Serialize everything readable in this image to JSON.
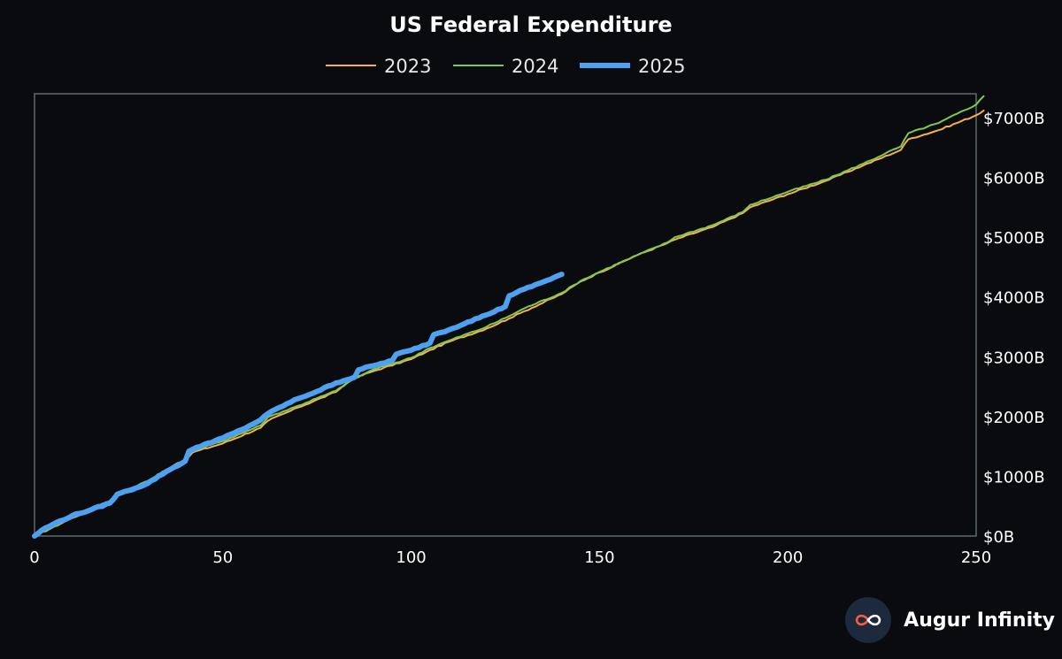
{
  "colors": {
    "background": "#0a0b0e",
    "axis": "#5d6a70",
    "text": "#ffffff",
    "s2023": "#f2b24e",
    "s2024": "#7ec857",
    "s2025": "#4ea0f0",
    "logo_bg": "#1d2a3d"
  },
  "brand": {
    "name": "Augur Infinity",
    "logo_icon": "infinity-icon"
  },
  "chart_data": {
    "type": "line",
    "title": "US Federal Expenditure",
    "xlabel": "",
    "ylabel": "",
    "xlim": [
      0,
      250
    ],
    "ylim": [
      0,
      7400
    ],
    "y_axis_position": "right",
    "grid": false,
    "legend_position": "top-center",
    "x_ticks": [
      0,
      50,
      100,
      150,
      200,
      250
    ],
    "x_tick_labels": [
      "0",
      "50",
      "100",
      "150",
      "200",
      "250"
    ],
    "y_ticks": [
      0,
      1000,
      2000,
      3000,
      4000,
      5000,
      6000,
      7000
    ],
    "y_tick_labels": [
      "$0B",
      "$1000B",
      "$2000B",
      "$3000B",
      "$4000B",
      "$5000B",
      "$6000B",
      "$7000B"
    ],
    "series": [
      {
        "name": "2023",
        "color": "#f2b24e",
        "width": 2,
        "x": [
          0,
          10,
          20,
          22,
          30,
          40,
          42,
          50,
          60,
          62,
          70,
          80,
          84,
          90,
          100,
          104,
          110,
          120,
          126,
          130,
          140,
          145,
          150,
          160,
          168,
          170,
          180,
          188,
          190,
          200,
          210,
          220,
          230,
          232,
          240,
          250,
          252
        ],
        "y": [
          0,
          300,
          580,
          690,
          900,
          1260,
          1400,
          1550,
          1810,
          1930,
          2150,
          2410,
          2620,
          2760,
          2960,
          3080,
          3250,
          3470,
          3640,
          3760,
          4050,
          4260,
          4410,
          4700,
          4900,
          4960,
          5170,
          5400,
          5500,
          5720,
          5940,
          6200,
          6460,
          6640,
          6790,
          7040,
          7120
        ]
      },
      {
        "name": "2024",
        "color": "#7ec857",
        "width": 2,
        "x": [
          0,
          10,
          20,
          22,
          30,
          40,
          42,
          50,
          60,
          62,
          70,
          80,
          84,
          90,
          100,
          104,
          110,
          120,
          126,
          130,
          140,
          145,
          150,
          160,
          168,
          170,
          180,
          188,
          190,
          200,
          210,
          220,
          230,
          232,
          240,
          250,
          252
        ],
        "y": [
          0,
          310,
          590,
          710,
          920,
          1290,
          1420,
          1590,
          1850,
          1990,
          2180,
          2430,
          2600,
          2790,
          2980,
          3120,
          3270,
          3500,
          3680,
          3810,
          4070,
          4270,
          4420,
          4700,
          4910,
          5000,
          5200,
          5420,
          5540,
          5760,
          5960,
          6230,
          6520,
          6740,
          6910,
          7220,
          7360
        ]
      },
      {
        "name": "2025",
        "color": "#4ea0f0",
        "width": 6,
        "x": [
          0,
          2,
          5,
          10,
          15,
          20,
          22,
          25,
          30,
          35,
          40,
          41,
          45,
          50,
          55,
          60,
          62,
          65,
          70,
          75,
          80,
          85,
          86,
          90,
          95,
          96,
          100,
          105,
          106,
          110,
          115,
          120,
          125,
          126,
          130,
          135,
          140
        ],
        "y": [
          0,
          100,
          200,
          340,
          440,
          550,
          700,
          760,
          880,
          1080,
          1250,
          1420,
          1530,
          1640,
          1780,
          1940,
          2050,
          2150,
          2300,
          2420,
          2560,
          2660,
          2780,
          2850,
          2940,
          3040,
          3110,
          3230,
          3370,
          3450,
          3580,
          3700,
          3840,
          4020,
          4130,
          4250,
          4380
        ]
      }
    ]
  }
}
